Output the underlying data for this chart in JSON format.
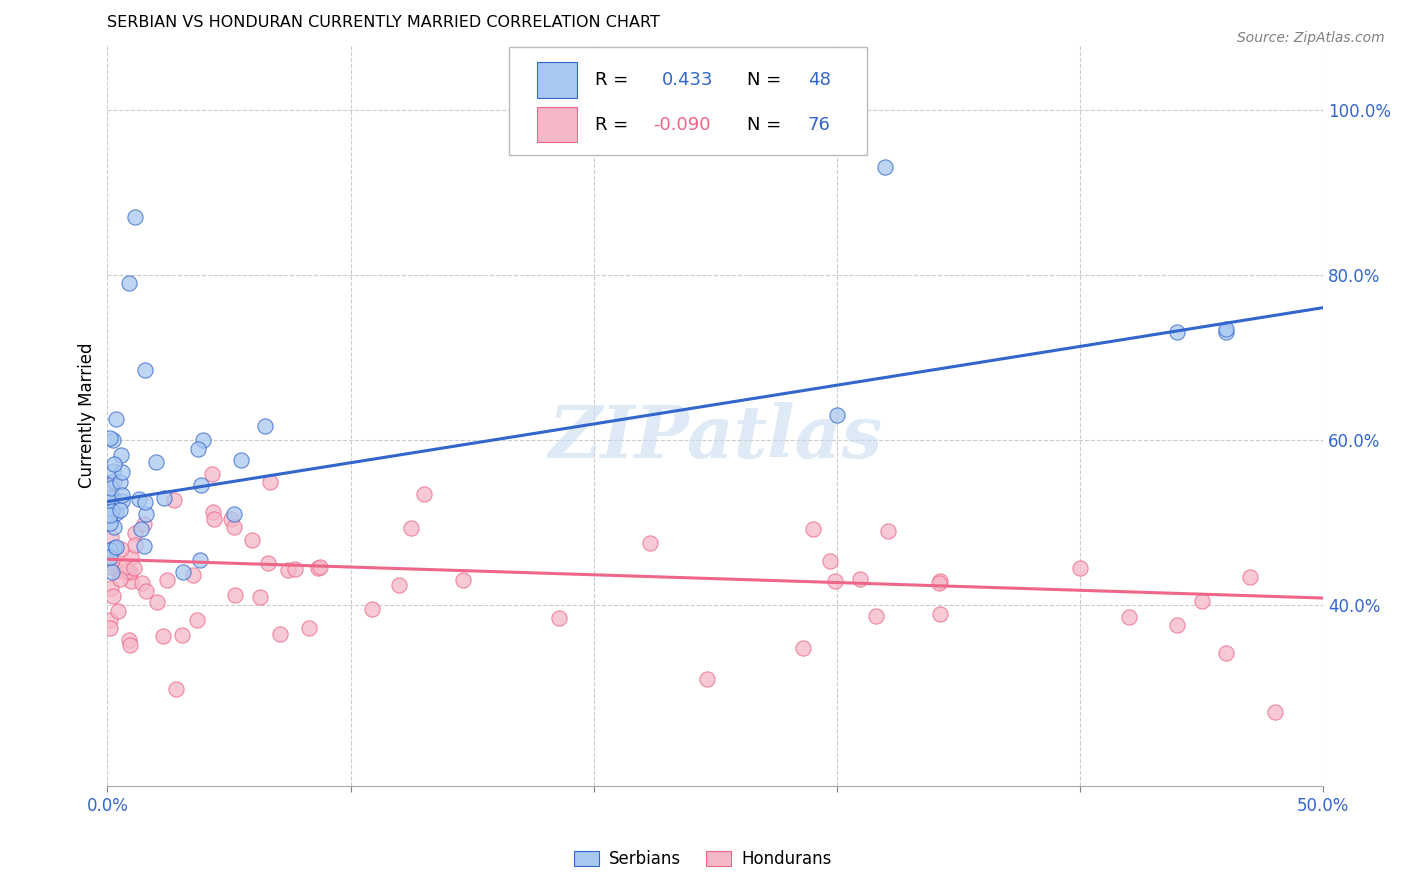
{
  "title": "SERBIAN VS HONDURAN CURRENTLY MARRIED CORRELATION CHART",
  "source": "Source: ZipAtlas.com",
  "ylabel": "Currently Married",
  "y_ticks": [
    0.4,
    0.6,
    0.8,
    1.0
  ],
  "y_tick_labels": [
    "40.0%",
    "60.0%",
    "80.0%",
    "100.0%"
  ],
  "x_range": [
    0.0,
    0.5
  ],
  "y_range": [
    0.18,
    1.08
  ],
  "serbian_R": 0.433,
  "serbian_N": 48,
  "honduran_R": -0.09,
  "honduran_N": 76,
  "serbian_color": "#A8C8F0",
  "honduran_color": "#F5B8C8",
  "serbian_line_color": "#3366CC",
  "honduran_line_color": "#EE6688",
  "watermark_color": "#C8DCEF",
  "background_color": "#FFFFFF",
  "grid_color": "#CCCCCC",
  "serb_line_y0": 0.525,
  "serb_line_y1": 0.76,
  "hond_line_y0": 0.455,
  "hond_line_y1": 0.408,
  "legend_R_color": "#000000",
  "legend_N_color": "#3366CC"
}
